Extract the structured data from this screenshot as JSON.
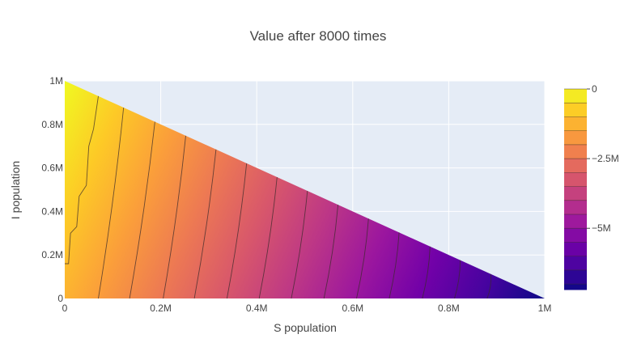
{
  "chart_data": {
    "type": "heatmap",
    "subtype": "contour",
    "title": "Value after 8000 times",
    "xlabel": "S population",
    "ylabel": "I population",
    "xlim": [
      0,
      1000000
    ],
    "ylim": [
      0,
      1000000
    ],
    "x_ticks": [
      0,
      200000,
      400000,
      600000,
      800000,
      1000000
    ],
    "x_tick_labels": [
      "0",
      "0.2M",
      "0.4M",
      "0.6M",
      "0.8M",
      "1M"
    ],
    "y_ticks": [
      0,
      200000,
      400000,
      600000,
      800000,
      1000000
    ],
    "y_tick_labels": [
      "0",
      "0.2M",
      "0.4M",
      "0.6M",
      "0.8M",
      "1M"
    ],
    "domain": "S + I <= 1M",
    "grid": true,
    "colorscale": "Plasma",
    "colorscale_stops": [
      "#0d0887",
      "#46039f",
      "#7201a8",
      "#9c179e",
      "#bd3786",
      "#d8576b",
      "#ed7953",
      "#fb9f3a",
      "#fdca26",
      "#f0f921"
    ],
    "z_range": [
      -7200000,
      0
    ],
    "contour_step": 500000,
    "contour_start_x": [
      0,
      70000,
      135000,
      205000,
      270000,
      338000,
      405000,
      472000,
      540000,
      608000,
      676000,
      745000,
      812000,
      880000
    ],
    "contour_top_x": [
      60000,
      130000,
      200000,
      268000,
      336000,
      404000,
      472000,
      540000,
      608000,
      676000,
      744000,
      812000,
      880000,
      948000
    ],
    "colorbar": {
      "ticks": [
        0,
        -2500000,
        -5000000
      ],
      "tick_labels": [
        "0",
        "−2.5M",
        "−5M"
      ]
    }
  }
}
